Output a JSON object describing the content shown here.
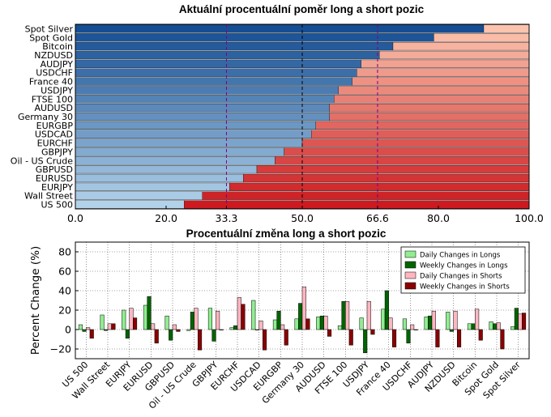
{
  "chart_data": [
    {
      "type": "bar",
      "orientation": "horizontal",
      "stacked": true,
      "title": "Aktuální procentuální poměr long a short pozic",
      "categories": [
        "Spot Silver",
        "Spot Gold",
        "Bitcoin",
        "NZDUSD",
        "AUDJPY",
        "USDCHF",
        "France 40",
        "USDJPY",
        "FTSE 100",
        "AUDUSD",
        "Germany 30",
        "EURGBP",
        "USDCAD",
        "EURCHF",
        "GBPJPY",
        "Oil - US Crude",
        "GBPUSD",
        "EURUSD",
        "EURJPY",
        "Wall Street",
        "US 500"
      ],
      "long_percent": [
        90,
        79,
        70,
        67,
        63,
        62,
        61,
        58,
        57,
        56,
        56,
        53,
        52,
        50,
        46,
        44,
        40,
        37,
        34,
        28,
        24
      ],
      "xlim": [
        0,
        100
      ],
      "xticks": [
        "0.0",
        "20.0",
        "33.3",
        "50.0",
        "66.6",
        "80.0",
        "100.0"
      ],
      "reference_lines": [
        {
          "value": 33.3,
          "color": "#800080",
          "style": "dashed"
        },
        {
          "value": 50.0,
          "color": "#000000",
          "style": "dashed"
        },
        {
          "value": 66.6,
          "color": "#800080",
          "style": "dashed"
        }
      ]
    },
    {
      "type": "bar",
      "orientation": "vertical",
      "title": "Procentuální změna long a short pozic",
      "ylabel": "Percent Change (%)",
      "ylim": [
        -30,
        90
      ],
      "yticks": [
        "−20",
        "0",
        "20",
        "40",
        "60",
        "80"
      ],
      "categories": [
        "US 500",
        "Wall Street",
        "EURJPY",
        "EURUSD",
        "GBPUSD",
        "Oil - US Crude",
        "GBPJPY",
        "EURCHF",
        "USDCAD",
        "EURGBP",
        "Germany 30",
        "AUDUSD",
        "FTSE 100",
        "USDJPY",
        "France 40",
        "USDCHF",
        "AUDJPY",
        "NZDUSD",
        "Bitcoin",
        "Spot Gold",
        "Spot Silver"
      ],
      "series": [
        {
          "name": "Daily Changes in Longs",
          "color": "#90ee90",
          "values": [
            5,
            15,
            20,
            25,
            14,
            -1,
            22,
            2,
            30,
            10,
            11,
            13,
            4,
            12,
            21,
            11,
            13,
            18,
            6,
            8,
            3
          ]
        },
        {
          "name": "Weekly Changes in Longs",
          "color": "#006400",
          "values": [
            -2,
            -1,
            -9,
            34,
            -11,
            18,
            -12,
            4,
            0,
            19,
            27,
            14,
            29,
            -24,
            40,
            -14,
            14,
            -2,
            6,
            6,
            22
          ]
        },
        {
          "name": "Daily Changes in Shorts",
          "color": "#ffb6c1",
          "values": [
            2,
            6,
            22,
            6,
            5,
            22,
            19,
            33,
            9,
            5,
            44,
            14,
            29,
            29,
            12,
            5,
            19,
            19,
            21,
            7,
            16
          ]
        },
        {
          "name": "Weekly Changes in Shorts",
          "color": "#8b0000",
          "values": [
            -9,
            6,
            12,
            -14,
            -2,
            -21,
            0,
            26,
            -21,
            -16,
            11,
            -7,
            -16,
            -5,
            -18,
            0,
            -18,
            -18,
            -11,
            -20,
            17
          ]
        }
      ]
    }
  ]
}
